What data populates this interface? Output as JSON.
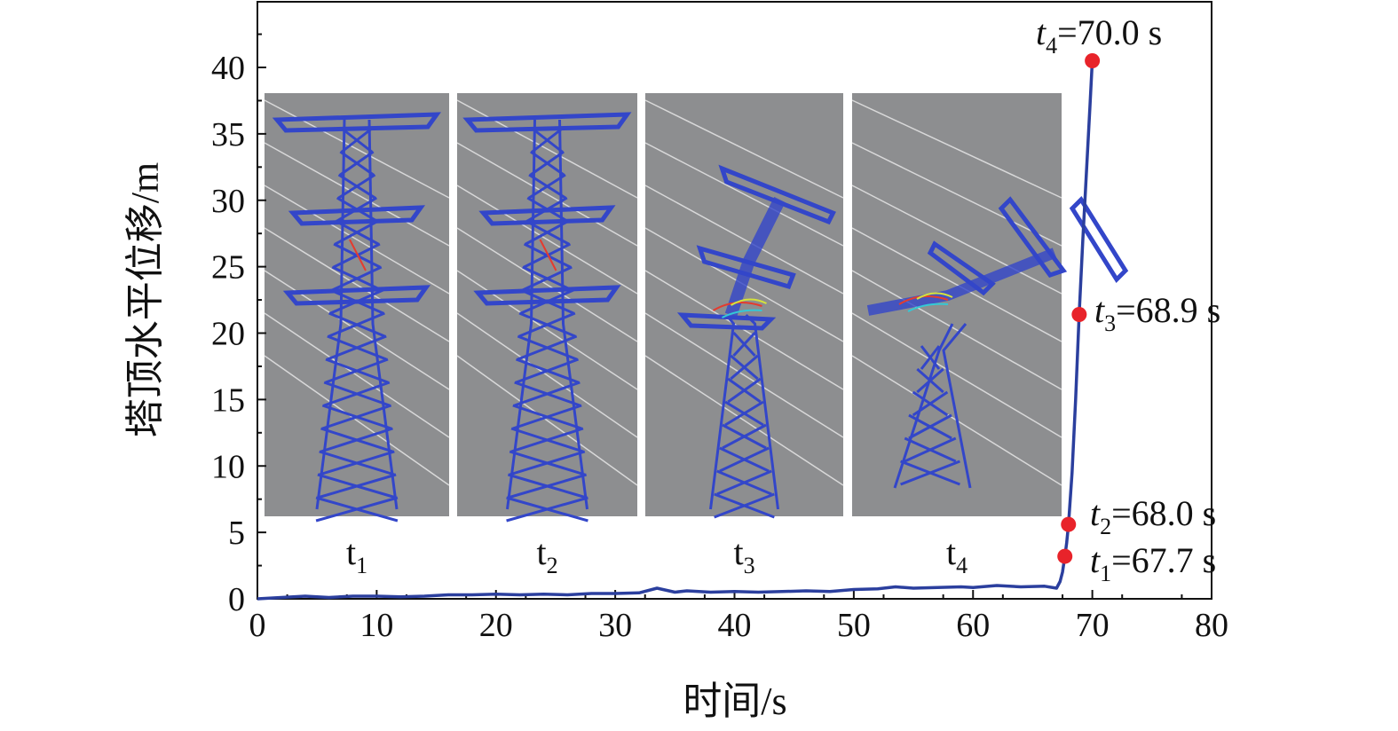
{
  "chart_data": {
    "type": "line",
    "xlabel": "时间/s",
    "ylabel": "塔顶水平位移/m",
    "xlim": [
      0,
      80
    ],
    "ylim": [
      0,
      40
    ],
    "x_ticks": [
      0,
      10,
      20,
      30,
      40,
      50,
      60,
      70,
      80
    ],
    "y_ticks": [
      0,
      5,
      10,
      15,
      20,
      25,
      30,
      35,
      40
    ],
    "grid": false,
    "colors": {
      "line": "#2b3f9e",
      "marker": "#e8232a",
      "panel_bg": "#8d8e90",
      "tower": "#3346c9"
    },
    "series": [
      {
        "x": [
          0,
          2,
          4,
          6,
          8,
          10,
          12,
          14,
          16,
          18,
          20,
          22,
          24,
          26,
          28,
          30,
          32,
          33.5,
          35,
          36,
          38,
          40,
          42,
          44,
          46,
          48,
          50,
          52,
          53.5,
          55,
          57,
          59,
          60,
          62,
          64,
          66,
          67,
          67.3,
          67.5,
          67.7,
          67.85,
          68.0,
          68.3,
          68.6,
          68.9,
          69.2,
          69.5,
          69.8,
          70.0
        ],
        "y": [
          0.0,
          0.1,
          0.2,
          0.1,
          0.2,
          0.2,
          0.15,
          0.2,
          0.3,
          0.3,
          0.35,
          0.3,
          0.35,
          0.3,
          0.4,
          0.4,
          0.45,
          0.8,
          0.5,
          0.6,
          0.5,
          0.55,
          0.5,
          0.55,
          0.6,
          0.55,
          0.7,
          0.75,
          0.9,
          0.8,
          0.85,
          0.9,
          0.85,
          1.0,
          0.9,
          0.95,
          0.8,
          1.3,
          2.0,
          3.2,
          4.2,
          5.6,
          9.5,
          15.0,
          21.4,
          27.0,
          32.0,
          37.0,
          40.5
        ]
      }
    ],
    "markers": [
      {
        "x": 67.7,
        "y": 3.2,
        "label_sym": "t",
        "label_sub": "1",
        "label_val": "=67.7 s"
      },
      {
        "x": 68.0,
        "y": 5.6,
        "label_sym": "t",
        "label_sub": "2",
        "label_val": "=68.0 s"
      },
      {
        "x": 68.9,
        "y": 21.4,
        "label_sym": "t",
        "label_sub": "3",
        "label_val": "=68.9 s"
      },
      {
        "x": 70.0,
        "y": 40.5,
        "label_sym": "t",
        "label_sub": "4",
        "label_val": "=70.0 s"
      }
    ],
    "inset_panels": [
      {
        "label_sym": "t",
        "label_sub": "1",
        "tower_state": "upright"
      },
      {
        "label_sym": "t",
        "label_sub": "2",
        "tower_state": "upright"
      },
      {
        "label_sym": "t",
        "label_sub": "3",
        "tower_state": "bending"
      },
      {
        "label_sym": "t",
        "label_sub": "4",
        "tower_state": "collapsed"
      }
    ]
  }
}
